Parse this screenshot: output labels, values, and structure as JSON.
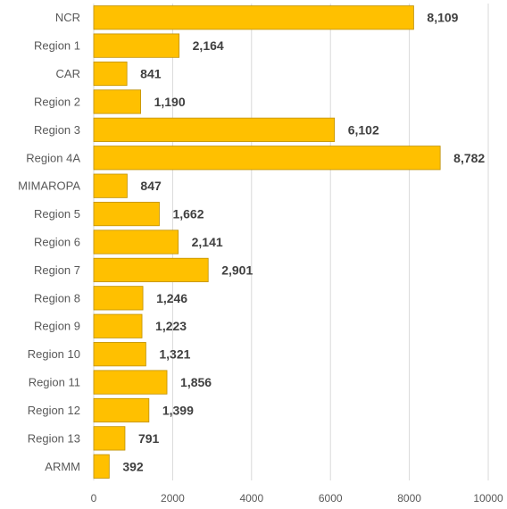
{
  "chart_data": {
    "type": "bar",
    "orientation": "horizontal",
    "title": "",
    "xlabel": "",
    "ylabel": "",
    "categories": [
      "NCR",
      "Region 1",
      "CAR",
      "Region 2",
      "Region 3",
      "Region 4A",
      "MIMAROPA",
      "Region 5",
      "Region 6",
      "Region 7",
      "Region 8",
      "Region 9",
      "Region 10",
      "Region 11",
      "Region 12",
      "Region 13",
      "ARMM"
    ],
    "values": [
      8109,
      2164,
      841,
      1190,
      6102,
      8782,
      847,
      1662,
      2141,
      2901,
      1246,
      1223,
      1321,
      1856,
      1399,
      791,
      392
    ],
    "value_labels": [
      "8,109",
      "2,164",
      "841",
      "1,190",
      "6,102",
      "8,782",
      "847",
      "1,662",
      "2,141",
      "2,901",
      "1,246",
      "1,223",
      "1,321",
      "1,856",
      "1,399",
      "791",
      "392"
    ],
    "xlim": [
      0,
      10000
    ],
    "xticks": [
      0,
      2000,
      4000,
      6000,
      8000,
      10000
    ],
    "xtick_labels": [
      "0",
      "2000",
      "4000",
      "6000",
      "8000",
      "10000"
    ],
    "grid": true,
    "legend": "none",
    "colors": {
      "bar_fill": "#ffc000",
      "bar_stroke": "#bf9000",
      "grid": "#d9d9d9"
    }
  }
}
